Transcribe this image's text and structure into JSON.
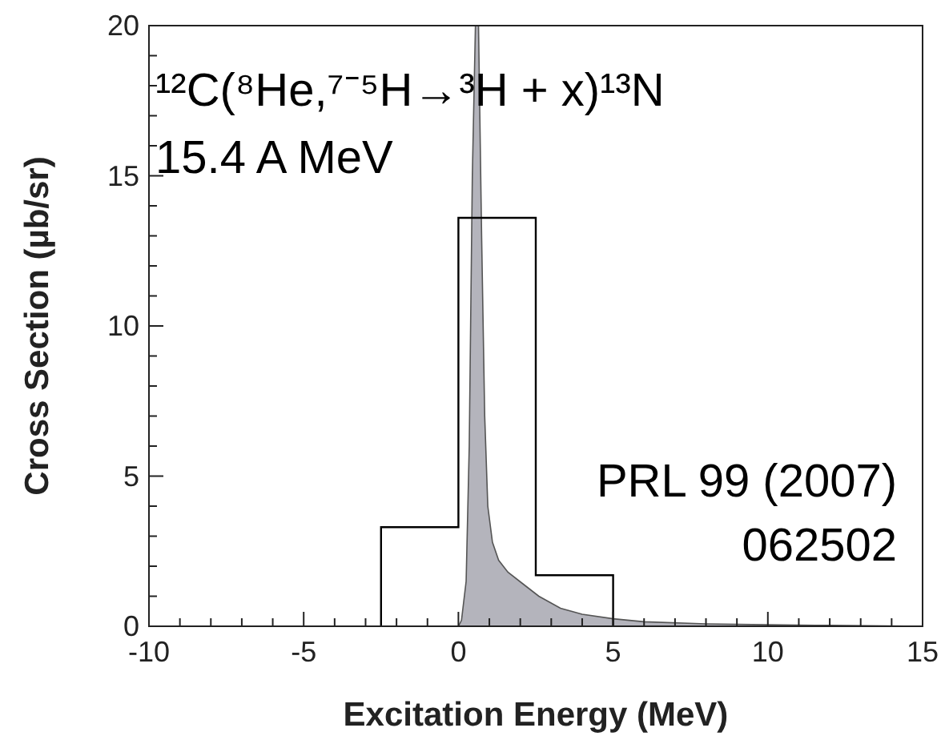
{
  "chart_data": {
    "type": "histogram",
    "xlabel": "Excitation Energy (MeV)",
    "ylabel": "Cross Section (µb/sr)",
    "bins": [
      -2.5,
      0,
      2.5,
      5
    ],
    "values": [
      3.3,
      13.6,
      1.7
    ],
    "color": "#000000",
    "series": [
      {
        "type": "area",
        "color": "#b4b4bc",
        "x": [
          0,
          0.1,
          0.25,
          0.35,
          0.45,
          0.55,
          0.65,
          0.75,
          0.85,
          0.95,
          1.1,
          1.3,
          1.6,
          2.1,
          2.6,
          3.3,
          4,
          5,
          6,
          8,
          10,
          12,
          15
        ],
        "values": [
          0,
          0.2,
          1.5,
          6,
          15,
          20,
          20,
          13,
          7,
          4,
          2.8,
          2.2,
          1.8,
          1.4,
          1,
          0.6,
          0.4,
          0.25,
          0.15,
          0.08,
          0.05,
          0.03,
          0
        ]
      }
    ],
    "xlim": [
      -10,
      15
    ],
    "ylim": [
      0,
      20
    ],
    "xticks": [
      -10,
      {
        "value": -9,
        "label": null
      },
      {
        "value": -8,
        "label": null
      },
      {
        "value": -7,
        "label": null
      },
      {
        "value": -6,
        "label": null
      },
      -5,
      {
        "value": -4,
        "label": null
      },
      {
        "value": -3,
        "label": null
      },
      {
        "value": -2,
        "label": null
      },
      {
        "value": -1,
        "label": null
      },
      0,
      {
        "value": 1,
        "label": null
      },
      {
        "value": 2,
        "label": null
      },
      {
        "value": 3,
        "label": null
      },
      {
        "value": 4,
        "label": null
      },
      5,
      {
        "value": 6,
        "label": null
      },
      {
        "value": 7,
        "label": null
      },
      {
        "value": 8,
        "label": null
      },
      {
        "value": 9,
        "label": null
      },
      10,
      {
        "value": 11,
        "label": null
      },
      {
        "value": 12,
        "label": null
      },
      {
        "value": 13,
        "label": null
      },
      {
        "value": 14,
        "label": null
      },
      15
    ],
    "yticks": [
      0,
      {
        "value": 1,
        "label": null
      },
      {
        "value": 2,
        "label": null
      },
      {
        "value": 3,
        "label": null
      },
      {
        "value": 4,
        "label": null
      },
      5,
      {
        "value": 6,
        "label": null
      },
      {
        "value": 7,
        "label": null
      },
      {
        "value": 8,
        "label": null
      },
      {
        "value": 9,
        "label": null
      },
      10,
      {
        "value": 11,
        "label": null
      },
      {
        "value": 12,
        "label": null
      },
      {
        "value": 13,
        "label": null
      },
      {
        "value": 14,
        "label": null
      },
      15,
      {
        "value": 16,
        "label": null
      },
      {
        "value": 17,
        "label": null
      },
      {
        "value": 18,
        "label": null
      },
      {
        "value": 19,
        "label": null
      },
      20
    ],
    "annotations": [
      "¹²C(⁸He,⁷⁻⁵H→³H + x)¹³N",
      "15.4 A MeV",
      "PRL 99 (2007)",
      "062502"
    ]
  }
}
